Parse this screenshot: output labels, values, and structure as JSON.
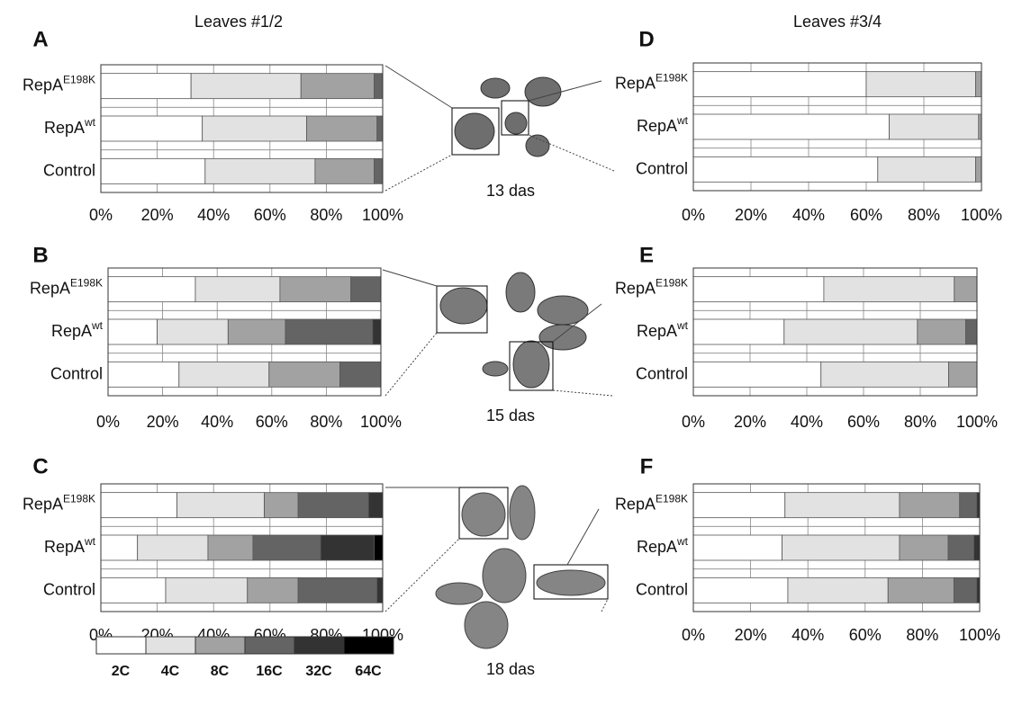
{
  "figure": {
    "column_titles": [
      "Leaves #1/2",
      "Leaves #3/4"
    ],
    "photo_labels": [
      "13 das",
      "15 das",
      "18 das"
    ],
    "legend": [
      {
        "name": "2C",
        "color": "#ffffff"
      },
      {
        "name": "4C",
        "color": "#e2e2e2"
      },
      {
        "name": "8C",
        "color": "#a2a2a2"
      },
      {
        "name": "16C",
        "color": "#646464"
      },
      {
        "name": "32C",
        "color": "#333333"
      },
      {
        "name": "64C",
        "color": "#000000"
      }
    ]
  },
  "chart_data": [
    {
      "type": "stacked-barh",
      "panel": "A",
      "categories": [
        {
          "text": "RepA",
          "superscript": "E198K"
        },
        {
          "text": "RepA",
          "superscript": "wt"
        },
        {
          "text": "Control"
        }
      ],
      "series": [
        {
          "values": [
            32,
            36,
            37
          ]
        },
        {
          "values": [
            39,
            37,
            39
          ]
        },
        {
          "values": [
            26,
            25,
            21
          ]
        },
        {
          "values": [
            3,
            2,
            3
          ]
        }
      ],
      "xlim": [
        0,
        100
      ],
      "xticks": [
        {
          "value": 0,
          "label": "0%"
        },
        {
          "value": 20,
          "label": "20%"
        },
        {
          "value": 40,
          "label": "40%"
        },
        {
          "value": 60,
          "label": "60%"
        },
        {
          "value": 80,
          "label": "80%"
        },
        {
          "value": 100,
          "label": "100%"
        }
      ],
      "grid": true
    },
    {
      "type": "stacked-barh",
      "panel": "B",
      "categories": [
        {
          "text": "RepA",
          "superscript": "E198K"
        },
        {
          "text": "RepA",
          "superscript": "wt"
        },
        {
          "text": "Control"
        }
      ],
      "series": [
        {
          "values": [
            32,
            18,
            26
          ]
        },
        {
          "values": [
            31,
            26,
            33
          ]
        },
        {
          "values": [
            26,
            21,
            26
          ]
        },
        {
          "values": [
            11,
            32,
            15
          ]
        },
        {
          "values": [
            null,
            3,
            null
          ]
        }
      ],
      "xlim": [
        0,
        100
      ],
      "xticks": [
        {
          "value": 0,
          "label": "0%"
        },
        {
          "value": 20,
          "label": "20%"
        },
        {
          "value": 40,
          "label": "40%"
        },
        {
          "value": 60,
          "label": "60%"
        },
        {
          "value": 80,
          "label": "80%"
        },
        {
          "value": 100,
          "label": "100%"
        }
      ],
      "grid": true
    },
    {
      "type": "stacked-barh",
      "panel": "C",
      "categories": [
        {
          "text": "RepA",
          "superscript": "E198K"
        },
        {
          "text": "RepA",
          "superscript": "wt"
        },
        {
          "text": "Control"
        }
      ],
      "series": [
        {
          "values": [
            27,
            13,
            23
          ]
        },
        {
          "values": [
            31,
            25,
            29
          ]
        },
        {
          "values": [
            12,
            16,
            18
          ]
        },
        {
          "values": [
            25,
            24,
            28
          ]
        },
        {
          "values": [
            5,
            19,
            2
          ]
        },
        {
          "values": [
            null,
            3,
            null
          ]
        }
      ],
      "xlim": [
        0,
        100
      ],
      "xticks": [
        {
          "value": 0,
          "label": "0%"
        },
        {
          "value": 20,
          "label": "20%"
        },
        {
          "value": 40,
          "label": "40%"
        },
        {
          "value": 60,
          "label": "60%"
        },
        {
          "value": 80,
          "label": "80%"
        },
        {
          "value": 100,
          "label": "100%"
        }
      ],
      "grid": true
    },
    {
      "type": "stacked-barh",
      "panel": "D",
      "categories": [
        {
          "text": "RepA",
          "superscript": "E198K"
        },
        {
          "text": "RepA",
          "superscript": "wt"
        },
        {
          "text": "Control"
        }
      ],
      "series": [
        {
          "values": [
            60,
            68,
            64
          ]
        },
        {
          "values": [
            38,
            31,
            34
          ]
        },
        {
          "values": [
            2,
            1,
            2
          ]
        }
      ],
      "xlim": [
        0,
        100
      ],
      "xticks": [
        {
          "value": 0,
          "label": "0%"
        },
        {
          "value": 20,
          "label": "20%"
        },
        {
          "value": 40,
          "label": "40%"
        },
        {
          "value": 60,
          "label": "60%"
        },
        {
          "value": 80,
          "label": "80%"
        },
        {
          "value": 100,
          "label": "100%"
        }
      ],
      "grid": true
    },
    {
      "type": "stacked-barh",
      "panel": "E",
      "categories": [
        {
          "text": "RepA",
          "superscript": "E198K"
        },
        {
          "text": "RepA",
          "superscript": "wt"
        },
        {
          "text": "Control"
        }
      ],
      "series": [
        {
          "values": [
            46,
            32,
            45
          ]
        },
        {
          "values": [
            46,
            47,
            45
          ]
        },
        {
          "values": [
            8,
            17,
            10
          ]
        },
        {
          "values": [
            null,
            4,
            null
          ]
        }
      ],
      "xlim": [
        0,
        100
      ],
      "xticks": [
        {
          "value": 0,
          "label": "0%"
        },
        {
          "value": 20,
          "label": "20%"
        },
        {
          "value": 40,
          "label": "40%"
        },
        {
          "value": 60,
          "label": "60%"
        },
        {
          "value": 80,
          "label": "80%"
        },
        {
          "value": 100,
          "label": "100%"
        }
      ],
      "grid": true
    },
    {
      "type": "stacked-barh",
      "panel": "F",
      "categories": [
        {
          "text": "RepA",
          "superscript": "E198K"
        },
        {
          "text": "RepA",
          "superscript": "wt"
        },
        {
          "text": "Control"
        }
      ],
      "series": [
        {
          "values": [
            32,
            31,
            33
          ]
        },
        {
          "values": [
            40,
            41,
            35
          ]
        },
        {
          "values": [
            21,
            17,
            23
          ]
        },
        {
          "values": [
            6,
            9,
            8
          ]
        },
        {
          "values": [
            1,
            2,
            1
          ]
        }
      ],
      "xlim": [
        0,
        100
      ],
      "xticks": [
        {
          "value": 0,
          "label": "0%"
        },
        {
          "value": 20,
          "label": "20%"
        },
        {
          "value": 40,
          "label": "40%"
        },
        {
          "value": 60,
          "label": "60%"
        },
        {
          "value": 80,
          "label": "80%"
        },
        {
          "value": 100,
          "label": "100%"
        }
      ],
      "grid": true
    }
  ]
}
